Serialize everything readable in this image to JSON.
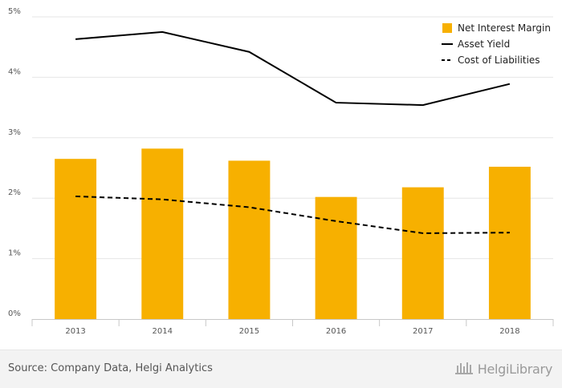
{
  "chart_data": {
    "type": "bar",
    "categories": [
      "2013",
      "2014",
      "2015",
      "2016",
      "2017",
      "2018"
    ],
    "series": [
      {
        "name": "Net Interest Margin",
        "type": "bar",
        "color": "#f7b000",
        "values": [
          2.65,
          2.82,
          2.62,
          2.02,
          2.18,
          2.52
        ]
      },
      {
        "name": "Asset Yield",
        "type": "line",
        "style": "solid",
        "color": "#000000",
        "values": [
          4.63,
          4.75,
          4.42,
          3.58,
          3.54,
          3.89
        ]
      },
      {
        "name": "Cost of Liabilities",
        "type": "line",
        "style": "dashed",
        "color": "#000000",
        "values": [
          2.03,
          1.98,
          1.85,
          1.62,
          1.42,
          1.43
        ]
      }
    ],
    "yticks": [
      "0%",
      "1%",
      "2%",
      "3%",
      "4%",
      "5%"
    ],
    "ylim": [
      0,
      5
    ],
    "grid": true,
    "legend": "top-right"
  },
  "footer": {
    "source": "Source: Company Data, Helgi Analytics",
    "brand": "HelgiLibrary",
    "brand_icon": "library-building-icon"
  }
}
